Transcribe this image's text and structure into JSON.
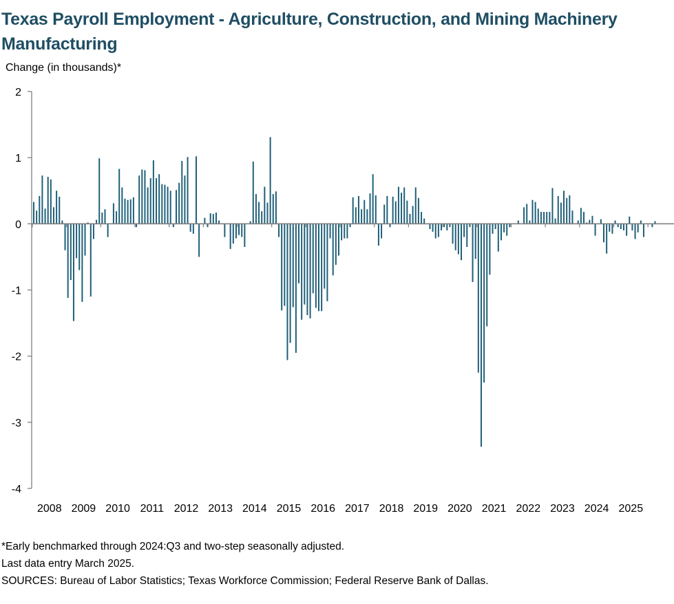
{
  "title": "Texas Payroll Employment - Agriculture, Construction, and Mining Machinery Manufacturing",
  "notes": [
    "*Early benchmarked through 2024:Q3 and two-step seasonally adjusted.",
    "Last data entry March 2025.",
    "SOURCES:  Bureau of Labor Statistics; Texas Workforce Commission;  Federal Reserve Bank of Dallas."
  ],
  "colors": {
    "bar": "#1f5f78",
    "axis": "#7f7f7f",
    "title": "#1f4e63"
  },
  "chart_data": {
    "type": "bar",
    "title": "Texas Payroll Employment - Agriculture, Construction, and Mining Machinery Manufacturing",
    "ylabel": "Change (in thousands)*",
    "xlabel": "",
    "ylim": [
      -4,
      2
    ],
    "yticks": [
      2,
      1,
      0,
      -1,
      -2,
      -3,
      -4
    ],
    "xtick_labels": [
      "2008",
      "2009",
      "2010",
      "2011",
      "2012",
      "2013",
      "2014",
      "2015",
      "2016",
      "2017",
      "2018",
      "2019",
      "2020",
      "2021",
      "2022",
      "2023",
      "2024",
      "2025"
    ],
    "frequency": "monthly",
    "start": "2008-01",
    "end": "2025-03",
    "grid": false,
    "legend": "none",
    "series": [
      {
        "values": [
          0.33,
          0.2,
          0.42,
          0.73,
          0.23,
          0.71,
          0.67,
          0.25,
          0.5,
          0.41,
          0.05,
          -0.4,
          -1.12,
          -0.85,
          -1.47,
          -0.52,
          -0.7,
          -1.18,
          -0.48,
          0.02,
          -1.1,
          -0.23,
          0.06,
          0.99,
          0.17,
          0.22,
          -0.2,
          0.0,
          0.31,
          0.19,
          0.83,
          0.55,
          0.38,
          0.36,
          0.37,
          0.4,
          -0.05,
          0.73,
          0.82,
          0.81,
          0.55,
          0.69,
          0.96,
          0.69,
          0.75,
          0.6,
          0.59,
          0.56,
          0.5,
          -0.05,
          0.51,
          0.62,
          0.95,
          0.73,
          1.01,
          -0.12,
          -0.15,
          1.02,
          -0.5,
          0.0,
          0.09,
          -0.05,
          0.16,
          0.15,
          0.17,
          0.05,
          0.0,
          -0.2,
          0.0,
          -0.38,
          -0.3,
          -0.22,
          -0.17,
          -0.2,
          -0.35,
          0.0,
          0.04,
          0.94,
          0.45,
          0.33,
          0.19,
          0.56,
          0.32,
          1.31,
          0.45,
          0.49,
          -0.2,
          -1.31,
          -1.24,
          -2.06,
          -1.8,
          -1.26,
          -1.95,
          -0.9,
          -1.45,
          -1.22,
          -1.38,
          -1.43,
          -1.05,
          -1.27,
          -1.32,
          -1.32,
          -0.98,
          -1.17,
          -0.22,
          -0.78,
          -0.62,
          -0.48,
          -0.25,
          -0.22,
          -0.22,
          -0.05,
          0.4,
          0.25,
          0.42,
          0.22,
          0.36,
          0.22,
          0.46,
          0.75,
          0.43,
          -0.33,
          -0.22,
          0.29,
          0.42,
          -0.05,
          0.41,
          0.34,
          0.56,
          0.47,
          0.55,
          0.35,
          0.15,
          0.27,
          0.55,
          0.39,
          0.18,
          0.08,
          0.0,
          -0.08,
          -0.12,
          -0.22,
          -0.2,
          -0.1,
          -0.05,
          -0.1,
          -0.05,
          -0.3,
          -0.4,
          -0.46,
          -0.55,
          -0.2,
          -0.35,
          -0.05,
          -0.88,
          -0.53,
          -2.25,
          -3.37,
          -2.4,
          -1.55,
          -0.77,
          -0.15,
          -0.08,
          -0.42,
          -0.25,
          -0.13,
          -0.18,
          -0.05,
          0.0,
          0.0,
          0.05,
          0.0,
          0.25,
          0.3,
          0.05,
          0.36,
          0.33,
          0.23,
          0.18,
          0.18,
          0.18,
          0.18,
          0.54,
          0.08,
          0.42,
          0.32,
          0.5,
          0.39,
          0.43,
          0.2,
          0.0,
          0.05,
          0.24,
          0.18,
          0.02,
          0.06,
          0.12,
          -0.18,
          0.0,
          0.07,
          -0.28,
          -0.45,
          -0.12,
          -0.15,
          0.05,
          -0.05,
          -0.08,
          -0.1,
          -0.18,
          0.11,
          -0.1,
          -0.23,
          -0.13,
          0.05,
          -0.2,
          0.0,
          0.0,
          -0.05,
          0.04
        ]
      }
    ]
  }
}
